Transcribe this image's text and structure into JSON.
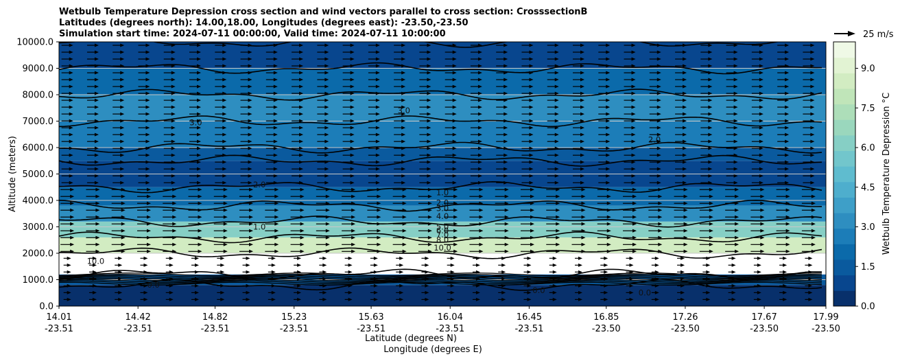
{
  "chart_data": {
    "type": "contour",
    "title_lines": [
      "Wetbulb Temperature Depression cross section and wind vectors parallel to cross section: CrosssectionB",
      "Latitudes (degrees north): 14.00,18.00, Longitudes (degrees east): -23.50,-23.50",
      "Simulation start time: 2024-07-11 00:00:00, Valid time: 2024-07-11 10:00:00"
    ],
    "xlabel_lat": "Latitude (degrees N)",
    "xlabel_lon": "Longitude (degrees E)",
    "ylabel": "Altitude (meters)",
    "xlim": [
      14.01,
      17.99
    ],
    "ylim": [
      0,
      10000
    ],
    "y_ticks": [
      "0.0",
      "1000.0",
      "2000.0",
      "3000.0",
      "4000.0",
      "5000.0",
      "6000.0",
      "7000.0",
      "8000.0",
      "9000.0",
      "10000.0"
    ],
    "x_ticks": [
      {
        "lat": "14.01",
        "lon": "-23.51"
      },
      {
        "lat": "14.42",
        "lon": "-23.51"
      },
      {
        "lat": "14.82",
        "lon": "-23.51"
      },
      {
        "lat": "15.23",
        "lon": "-23.51"
      },
      {
        "lat": "15.63",
        "lon": "-23.51"
      },
      {
        "lat": "16.04",
        "lon": "-23.51"
      },
      {
        "lat": "16.45",
        "lon": "-23.51"
      },
      {
        "lat": "16.85",
        "lon": "-23.50"
      },
      {
        "lat": "17.26",
        "lon": "-23.50"
      },
      {
        "lat": "17.67",
        "lon": "-23.50"
      },
      {
        "lat": "17.99",
        "lon": "-23.50"
      }
    ],
    "grid": "horizontal",
    "colorbar": {
      "label": "Wetbulb Temperature Depression °C",
      "ticks": [
        "0.0",
        "1.5",
        "3.0",
        "4.5",
        "6.0",
        "7.5",
        "9.0"
      ],
      "range": [
        0,
        10
      ],
      "colors": [
        "#08306b",
        "#08468e",
        "#0a5a9e",
        "#0b6aaa",
        "#1c7db8",
        "#2e8ec0",
        "#3e9fc8",
        "#4eaecd",
        "#5fbccf",
        "#72c6cc",
        "#86cfc5",
        "#9ad7bd",
        "#addeb9",
        "#c0e5b9",
        "#d2ecc2",
        "#e2f3d3",
        "#eff9e6"
      ]
    },
    "wind_reference": {
      "label": "25 m/s"
    },
    "contour_labels": [
      "1.0",
      "2.0",
      "3.0",
      "4.0",
      "5.0",
      "6.0",
      "7.0",
      "8.0",
      "10.0",
      "0.0"
    ],
    "profile": {
      "x": [
        14.01,
        14.42,
        14.82,
        15.23,
        15.63,
        16.04,
        16.45,
        16.85,
        17.26,
        17.67,
        17.99
      ],
      "layers": [
        {
          "alt_top": 800,
          "value": 0.5
        },
        {
          "alt_top": 1200,
          "value": 1.5
        },
        {
          "alt_top": 2000,
          "value": 10.0
        },
        {
          "alt_top": 2600,
          "value": 8.5
        },
        {
          "alt_top": 3200,
          "value": 6.0
        },
        {
          "alt_top": 3800,
          "value": 3.5
        },
        {
          "alt_top": 4500,
          "value": 2.0
        },
        {
          "alt_top": 5500,
          "value": 1.0
        },
        {
          "alt_top": 6000,
          "value": 1.6
        },
        {
          "alt_top": 7000,
          "value": 2.4
        },
        {
          "alt_top": 8000,
          "value": 3.0
        },
        {
          "alt_top": 9000,
          "value": 2.2
        },
        {
          "alt_top": 10000,
          "value": 1.0
        }
      ]
    }
  }
}
